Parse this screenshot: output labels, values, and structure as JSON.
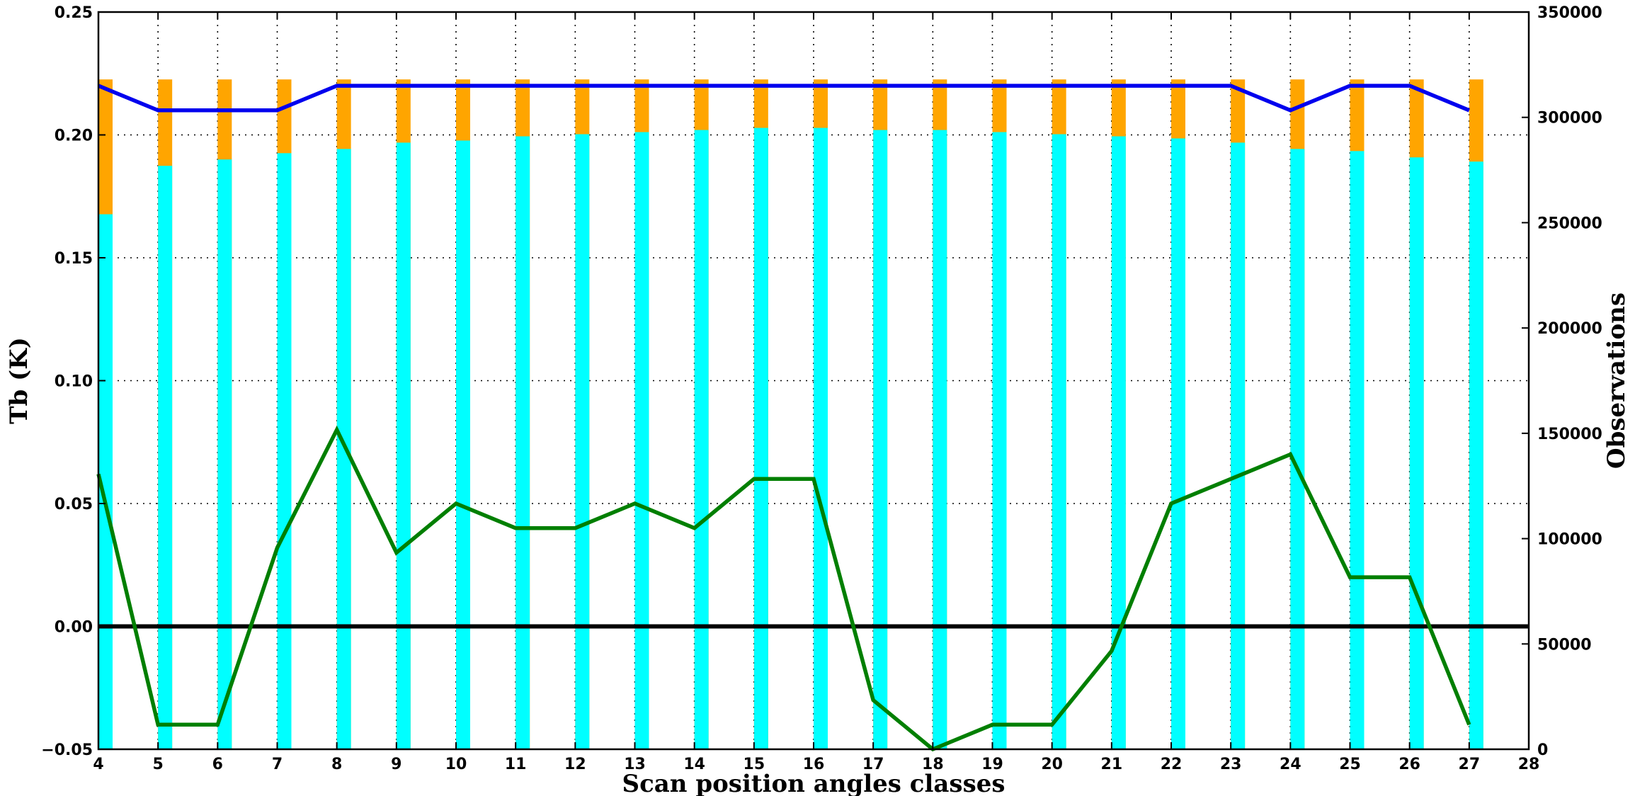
{
  "chart_data": {
    "type": "bar",
    "xlabel": "Scan position angles classes",
    "ylabel": "Tb (K)",
    "y2label": "Observations",
    "xlim": [
      4,
      28
    ],
    "ylim": [
      -0.05,
      0.25
    ],
    "y2lim": [
      0,
      350000
    ],
    "xticks": [
      "4",
      "5",
      "6",
      "7",
      "8",
      "9",
      "10",
      "11",
      "12",
      "13",
      "14",
      "15",
      "16",
      "17",
      "18",
      "19",
      "20",
      "21",
      "22",
      "23",
      "24",
      "25",
      "26",
      "27",
      "28"
    ],
    "yticks": [
      "−0.05",
      "0.00",
      "0.05",
      "0.10",
      "0.15",
      "0.20",
      "0.25"
    ],
    "y2ticks": [
      "0",
      "50000",
      "100000",
      "150000",
      "200000",
      "250000",
      "300000",
      "350000"
    ],
    "grid": true,
    "categories": [
      4,
      5,
      6,
      7,
      8,
      9,
      10,
      11,
      12,
      13,
      14,
      15,
      16,
      17,
      18,
      19,
      20,
      21,
      22,
      23,
      24,
      25,
      26,
      27
    ],
    "bars_total_observations": [
      318000,
      318000,
      318000,
      318000,
      318000,
      318000,
      318000,
      318000,
      318000,
      318000,
      318000,
      318000,
      318000,
      318000,
      318000,
      318000,
      318000,
      318000,
      318000,
      318000,
      318000,
      318000,
      318000,
      318000
    ],
    "bars_used_observations": [
      254000,
      277000,
      280000,
      283000,
      285000,
      288000,
      289000,
      291000,
      292000,
      293000,
      294000,
      295000,
      295000,
      294000,
      294000,
      293000,
      292000,
      291000,
      290000,
      288000,
      285000,
      284000,
      281000,
      279000
    ],
    "series": [
      {
        "axis": "left",
        "color": "#0000ee",
        "x": [
          4,
          5,
          6,
          7,
          8,
          9,
          10,
          11,
          12,
          13,
          14,
          15,
          16,
          17,
          18,
          19,
          20,
          21,
          22,
          23,
          24,
          25,
          26,
          27
        ],
        "values": [
          0.22,
          0.21,
          0.21,
          0.21,
          0.22,
          0.22,
          0.22,
          0.22,
          0.22,
          0.22,
          0.22,
          0.22,
          0.22,
          0.22,
          0.22,
          0.22,
          0.22,
          0.22,
          0.22,
          0.22,
          0.21,
          0.22,
          0.22,
          0.21
        ]
      },
      {
        "axis": "left",
        "color": "#007f00",
        "x": [
          4,
          5,
          6,
          7,
          8,
          9,
          10,
          11,
          12,
          13,
          14,
          15,
          16,
          17,
          18,
          19,
          20,
          21,
          22,
          23,
          24,
          25,
          26,
          27
        ],
        "values": [
          0.062,
          -0.04,
          -0.04,
          0.032,
          0.08,
          0.03,
          0.05,
          0.04,
          0.04,
          0.05,
          0.04,
          0.06,
          0.06,
          -0.03,
          -0.05,
          -0.04,
          -0.04,
          -0.01,
          0.05,
          0.06,
          0.07,
          0.02,
          0.02,
          -0.04
        ]
      }
    ],
    "zero_line": 0,
    "colors": {
      "total_bar": "#ffa500",
      "used_bar": "#00ffff",
      "zero_line": "#000000"
    }
  }
}
